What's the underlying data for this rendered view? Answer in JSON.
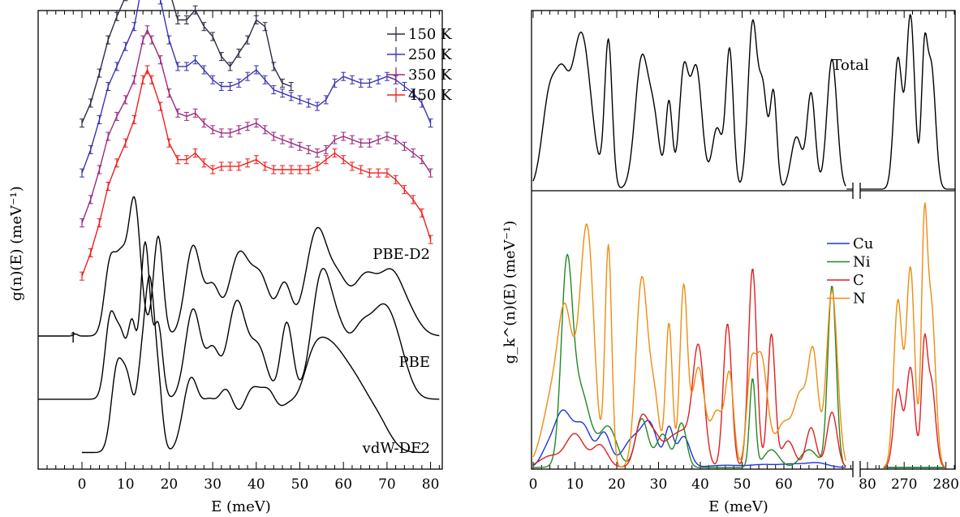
{
  "chart_data": [
    {
      "type": "line",
      "panel": "left",
      "xlabel": "E (meV)",
      "ylabel": "g(n)(E) (meV⁻¹)",
      "xlim": [
        -10,
        84
      ],
      "xticks": [
        0,
        10,
        20,
        30,
        40,
        50,
        60,
        70,
        80
      ],
      "annotation": "↑",
      "series": [
        {
          "name": "150 K",
          "color": "#2c2c44",
          "errorbars": true,
          "offset": 3.2,
          "x": [
            0,
            2,
            4,
            6,
            8,
            10,
            12,
            14,
            15,
            16,
            18,
            20,
            22,
            24,
            26,
            28,
            30,
            32,
            34,
            36,
            38,
            40,
            42,
            44,
            46,
            48
          ],
          "y": [
            0,
            0.3,
            0.75,
            1.25,
            1.6,
            1.9,
            2.25,
            2.95,
            3.15,
            2.95,
            2.65,
            2.0,
            1.55,
            1.55,
            1.7,
            1.45,
            1.3,
            1.0,
            0.85,
            1.05,
            1.25,
            1.55,
            1.45,
            0.85,
            0.6,
            0.55
          ]
        },
        {
          "name": "250 K",
          "color": "#3a35b0",
          "errorbars": true,
          "offset": 2.45,
          "x": [
            0,
            2,
            4,
            6,
            8,
            10,
            12,
            14,
            15,
            16,
            18,
            20,
            22,
            24,
            26,
            28,
            30,
            32,
            34,
            36,
            38,
            40,
            42,
            44,
            46,
            48,
            50,
            52,
            54,
            56,
            58,
            60,
            62,
            64,
            66,
            68,
            70,
            72,
            74,
            76,
            78,
            80
          ],
          "y": [
            0,
            0.35,
            0.8,
            1.3,
            1.6,
            1.9,
            2.2,
            2.9,
            3.1,
            2.95,
            2.6,
            2.0,
            1.6,
            1.6,
            1.7,
            1.55,
            1.4,
            1.3,
            1.3,
            1.35,
            1.45,
            1.55,
            1.4,
            1.25,
            1.2,
            1.15,
            1.1,
            1.05,
            1.0,
            1.1,
            1.35,
            1.45,
            1.4,
            1.35,
            1.35,
            1.4,
            1.45,
            1.4,
            1.3,
            1.2,
            1.05,
            0.75
          ]
        },
        {
          "name": "350 K",
          "color": "#9a2a7e",
          "errorbars": true,
          "offset": 1.7,
          "x": [
            0,
            2,
            4,
            6,
            8,
            10,
            12,
            14,
            15,
            16,
            18,
            20,
            22,
            24,
            26,
            28,
            30,
            32,
            34,
            36,
            38,
            40,
            42,
            44,
            46,
            48,
            50,
            52,
            54,
            56,
            58,
            60,
            62,
            64,
            66,
            68,
            70,
            72,
            74,
            76,
            78,
            80
          ],
          "y": [
            0,
            0.35,
            0.8,
            1.3,
            1.6,
            1.85,
            2.15,
            2.75,
            2.9,
            2.75,
            2.45,
            1.95,
            1.65,
            1.6,
            1.65,
            1.5,
            1.4,
            1.35,
            1.35,
            1.4,
            1.45,
            1.5,
            1.4,
            1.3,
            1.25,
            1.2,
            1.15,
            1.1,
            1.05,
            1.1,
            1.25,
            1.3,
            1.25,
            1.2,
            1.2,
            1.25,
            1.3,
            1.25,
            1.15,
            1.05,
            0.95,
            0.75
          ]
        },
        {
          "name": "450 K",
          "color": "#ee2020",
          "errorbars": true,
          "offset": 0.9,
          "x": [
            0,
            2,
            4,
            6,
            8,
            10,
            12,
            14,
            15,
            16,
            18,
            20,
            22,
            24,
            26,
            28,
            30,
            32,
            34,
            36,
            38,
            40,
            42,
            44,
            46,
            48,
            50,
            52,
            54,
            56,
            58,
            60,
            62,
            64,
            66,
            68,
            70,
            72,
            74,
            76,
            78,
            80
          ],
          "y": [
            0,
            0.35,
            0.8,
            1.35,
            1.7,
            2.0,
            2.35,
            2.95,
            3.1,
            2.95,
            2.55,
            2.0,
            1.75,
            1.75,
            1.85,
            1.7,
            1.6,
            1.65,
            1.65,
            1.65,
            1.7,
            1.75,
            1.65,
            1.6,
            1.6,
            1.6,
            1.6,
            1.6,
            1.65,
            1.75,
            1.85,
            1.75,
            1.65,
            1.6,
            1.55,
            1.55,
            1.55,
            1.45,
            1.3,
            1.15,
            0.95,
            0.55
          ]
        },
        {
          "name": "PBE-D2",
          "color": "#000000",
          "errorbars": false,
          "offset": 0.0,
          "x_from": -10,
          "x_to": 82,
          "peaks": [
            [
              -1.5,
              0.5,
              0.03
            ],
            [
              6.5,
              1.3,
              1.1
            ],
            [
              9,
              1.2,
              0.95
            ],
            [
              12,
              1.4,
              2.05
            ],
            [
              17.5,
              1.1,
              1.5
            ],
            [
              25.5,
              1.8,
              1.35
            ],
            [
              30,
              1.6,
              0.7
            ],
            [
              36,
              2.3,
              1.2
            ],
            [
              41,
              2.2,
              0.85
            ],
            [
              46.5,
              1.6,
              0.75
            ],
            [
              54,
              2.6,
              1.6
            ],
            [
              59,
              2.0,
              0.6
            ],
            [
              65,
              3.0,
              0.9
            ],
            [
              71,
              2.5,
              0.8
            ],
            [
              75,
              2.5,
              0.3
            ]
          ]
        },
        {
          "name": "PBE",
          "color": "#000000",
          "errorbars": false,
          "offset": -0.95,
          "x_from": -10,
          "x_to": 82,
          "peaks": [
            [
              6.5,
              1.2,
              1.2
            ],
            [
              9,
              1.2,
              0.9
            ],
            [
              11.5,
              0.9,
              1.05
            ],
            [
              14.5,
              1.1,
              2.35
            ],
            [
              17.5,
              1.0,
              1.1
            ],
            [
              25.5,
              1.8,
              1.35
            ],
            [
              30,
              1.5,
              0.7
            ],
            [
              35.5,
              2.1,
              1.45
            ],
            [
              40.5,
              2.0,
              0.75
            ],
            [
              47,
              1.4,
              1.15
            ],
            [
              55,
              2.3,
              1.85
            ],
            [
              59,
              2.0,
              0.7
            ],
            [
              64,
              2.6,
              1.0
            ],
            [
              69,
              2.5,
              1.05
            ],
            [
              72.5,
              2.5,
              0.6
            ]
          ]
        },
        {
          "name": "vdW-DF2",
          "color": "#000000",
          "errorbars": false,
          "offset": -1.75,
          "x_from": 0,
          "x_to": 78,
          "peaks": [
            [
              8,
              1.3,
              1.2
            ],
            [
              10.5,
              1.3,
              1.0
            ],
            [
              13.5,
              1.0,
              1.0
            ],
            [
              15.5,
              1.1,
              2.4
            ],
            [
              17.5,
              1.0,
              0.9
            ],
            [
              25,
              1.8,
              1.1
            ],
            [
              29,
              1.6,
              0.6
            ],
            [
              33,
              2.0,
              0.9
            ],
            [
              39,
              2.2,
              0.9
            ],
            [
              43,
              1.8,
              0.7
            ],
            [
              47,
              2.0,
              0.5
            ],
            [
              53,
              3.0,
              1.3
            ],
            [
              58,
              3.0,
              1.1
            ],
            [
              63,
              3.0,
              0.8
            ],
            [
              68,
              2.8,
              0.4
            ]
          ]
        }
      ],
      "legend": {
        "position": "top-right",
        "entries": [
          "150 K",
          "250 K",
          "350 K",
          "450 K"
        ]
      },
      "curve_labels": [
        "PBE-D2",
        "PBE",
        "vdW-DF2"
      ]
    },
    {
      "type": "line",
      "panel": "right",
      "xlabel": "E (meV)",
      "ylabel": "g_k^(n)(E) (meV⁻¹)",
      "xlim": [
        0,
        290
      ],
      "axis_break": [
        85,
        262
      ],
      "xticks": [
        0,
        10,
        20,
        30,
        40,
        50,
        60,
        70,
        80,
        270,
        280
      ],
      "upper_panel_label": "Total",
      "total": {
        "name": "Total",
        "color": "#000000",
        "peaks": [
          [
            4,
            1.8,
            0.55
          ],
          [
            7,
            1.5,
            0.45
          ],
          [
            11.5,
            2.3,
            0.9
          ],
          [
            18,
            0.9,
            0.85
          ],
          [
            26,
            1.6,
            0.75
          ],
          [
            29,
            1.3,
            0.35
          ],
          [
            32.5,
            0.8,
            0.5
          ],
          [
            36,
            1.1,
            0.65
          ],
          [
            39,
            1.4,
            0.7
          ],
          [
            44,
            1.2,
            0.35
          ],
          [
            47,
            0.9,
            0.8
          ],
          [
            52.5,
            1.1,
            0.95
          ],
          [
            55,
            1.0,
            0.55
          ],
          [
            57.5,
            0.8,
            0.55
          ],
          [
            63,
            1.3,
            0.3
          ],
          [
            66.5,
            1.0,
            0.55
          ],
          [
            71.5,
            1.2,
            0.75
          ],
          [
            268.5,
            1.0,
            0.75
          ],
          [
            271.5,
            1.0,
            1.0
          ],
          [
            274.8,
            0.7,
            0.7
          ],
          [
            276.5,
            1.0,
            0.7
          ]
        ]
      },
      "series": [
        {
          "name": "Cu",
          "color": "#2233dd",
          "peaks": [
            [
              3,
              1.5,
              0.05
            ],
            [
              7,
              2.2,
              0.25
            ],
            [
              12,
              2.0,
              0.18
            ],
            [
              17,
              1.5,
              0.15
            ],
            [
              24,
              2.5,
              0.13
            ],
            [
              28,
              1.8,
              0.17
            ],
            [
              32.5,
              1.0,
              0.17
            ],
            [
              36,
              1.5,
              0.14
            ],
            [
              46,
              4.0,
              0.01
            ],
            [
              55,
              3.0,
              0.012
            ],
            [
              62,
              3.0,
              0.015
            ],
            [
              68,
              2.5,
              0.02
            ]
          ]
        },
        {
          "name": "Ni",
          "color": "#228822",
          "peaks": [
            [
              8,
              1.3,
              0.78
            ],
            [
              11,
              2.5,
              0.36
            ],
            [
              18,
              2.0,
              0.18
            ],
            [
              26,
              1.5,
              0.22
            ],
            [
              31,
              1.5,
              0.15
            ],
            [
              35.5,
              1.2,
              0.2
            ],
            [
              52.5,
              0.7,
              0.4
            ],
            [
              57,
              1.8,
              0.08
            ],
            [
              66,
              2.0,
              0.08
            ],
            [
              71.5,
              1.0,
              0.82
            ]
          ]
        },
        {
          "name": "C",
          "color": "#e02020",
          "peaks": [
            [
              4,
              2.5,
              0.05
            ],
            [
              10,
              2.2,
              0.15
            ],
            [
              16,
              1.8,
              0.1
            ],
            [
              26,
              1.5,
              0.22
            ],
            [
              29,
              1.5,
              0.13
            ],
            [
              33,
              1.8,
              0.12
            ],
            [
              36,
              1.5,
              0.12
            ],
            [
              39.5,
              1.4,
              0.55
            ],
            [
              46.5,
              1.0,
              0.65
            ],
            [
              52.5,
              1.0,
              0.9
            ],
            [
              57,
              0.9,
              0.6
            ],
            [
              61,
              1.5,
              0.12
            ],
            [
              66.5,
              1.2,
              0.18
            ],
            [
              71.5,
              1.2,
              0.25
            ],
            [
              268.5,
              1.0,
              0.35
            ],
            [
              271.5,
              1.0,
              0.45
            ],
            [
              274.8,
              0.7,
              0.5
            ],
            [
              276.5,
              1.0,
              0.38
            ]
          ]
        },
        {
          "name": "N",
          "color": "#f08c10",
          "peaks": [
            [
              5,
              2.5,
              0.35
            ],
            [
              7.5,
              1.5,
              0.4
            ],
            [
              10,
              2.0,
              0.28
            ],
            [
              13,
              1.6,
              1.0
            ],
            [
              18,
              0.8,
              1.0
            ],
            [
              26,
              1.4,
              0.85
            ],
            [
              29,
              1.2,
              0.3
            ],
            [
              32.5,
              0.8,
              0.65
            ],
            [
              36,
              0.9,
              0.8
            ],
            [
              39.5,
              1.5,
              0.45
            ],
            [
              44,
              1.5,
              0.25
            ],
            [
              47,
              1.0,
              0.4
            ],
            [
              52,
              1.0,
              0.35
            ],
            [
              54.5,
              1.5,
              0.5
            ],
            [
              60,
              2.0,
              0.2
            ],
            [
              64,
              1.5,
              0.3
            ],
            [
              67,
              1.2,
              0.5
            ],
            [
              71.5,
              1.3,
              0.8
            ],
            [
              268.5,
              1.0,
              0.75
            ],
            [
              271.5,
              1.0,
              0.9
            ],
            [
              274.8,
              0.7,
              1.0
            ],
            [
              276.5,
              1.0,
              0.72
            ]
          ]
        }
      ],
      "legend": {
        "position": "upper-right",
        "entries": [
          "Cu",
          "Ni",
          "C",
          "N"
        ]
      }
    }
  ]
}
